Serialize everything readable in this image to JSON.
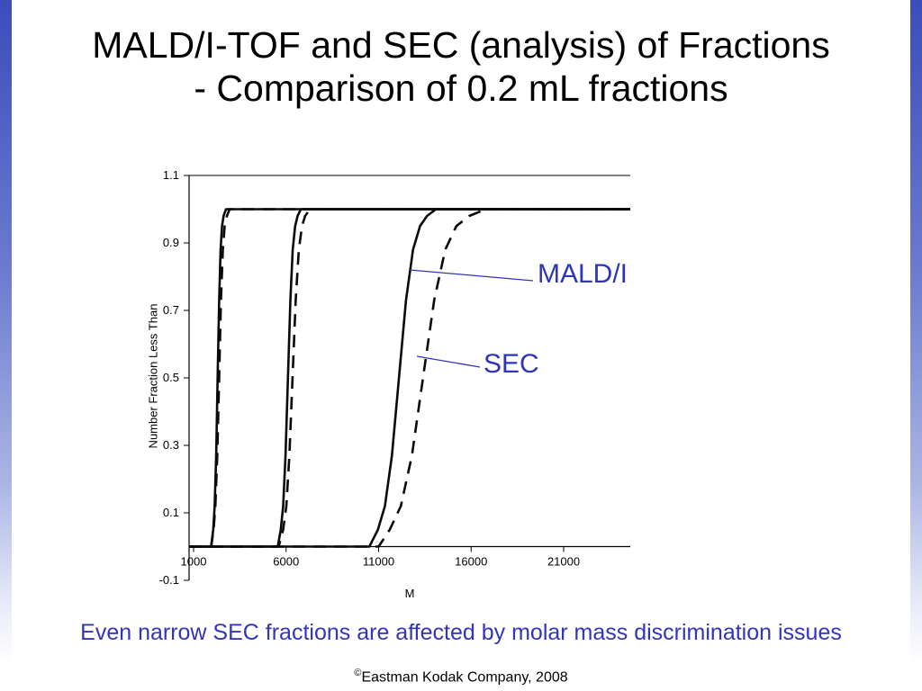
{
  "slide": {
    "title_line1": "MALD/I-TOF and SEC (analysis) of Fractions",
    "title_line2": "- Comparison of 0.2 mL fractions",
    "caption": "Even narrow SEC fractions are affected by molar mass discrimination issues",
    "copyright_symbol": "©",
    "copyright_text": "Eastman Kodak Company, 2008",
    "colors": {
      "title": "#000000",
      "caption": "#3333bb",
      "annotation": "#2e35bb",
      "curve": "#0a0a0a",
      "edge_gradient_top": "#3a4dbb"
    }
  },
  "chart_data": {
    "type": "line",
    "title": "",
    "xlabel": "M",
    "ylabel": "Number Fraction Less Than",
    "xlim": [
      757,
      24600
    ],
    "ylim": [
      -0.1,
      1.1
    ],
    "x_ticks": [
      1000,
      6000,
      11000,
      16000,
      21000
    ],
    "y_ticks": [
      1.1,
      0.9,
      0.7,
      0.5,
      0.3,
      0.1,
      -0.1
    ],
    "grid": false,
    "legend": "inline-annotations",
    "series": [
      {
        "name": "MALDI-TOF fraction 1",
        "dash": false,
        "points": [
          [
            757,
            0
          ],
          [
            1950,
            0
          ],
          [
            2060,
            0.05
          ],
          [
            2140,
            0.12
          ],
          [
            2220,
            0.27
          ],
          [
            2300,
            0.5
          ],
          [
            2380,
            0.73
          ],
          [
            2460,
            0.88
          ],
          [
            2540,
            0.95
          ],
          [
            2620,
            0.98
          ],
          [
            2750,
            1
          ],
          [
            24600,
            1
          ]
        ]
      },
      {
        "name": "SEC fraction 1",
        "dash": true,
        "points": [
          [
            757,
            0
          ],
          [
            1950,
            0
          ],
          [
            2080,
            0.05
          ],
          [
            2180,
            0.12
          ],
          [
            2280,
            0.27
          ],
          [
            2380,
            0.5
          ],
          [
            2480,
            0.73
          ],
          [
            2580,
            0.88
          ],
          [
            2680,
            0.95
          ],
          [
            2800,
            0.98
          ],
          [
            2950,
            1
          ],
          [
            24600,
            1
          ]
        ]
      },
      {
        "name": "MALDI-TOF fraction 2",
        "dash": false,
        "points": [
          [
            757,
            0
          ],
          [
            5550,
            0
          ],
          [
            5710,
            0.05
          ],
          [
            5840,
            0.12
          ],
          [
            5970,
            0.27
          ],
          [
            6100,
            0.5
          ],
          [
            6230,
            0.73
          ],
          [
            6360,
            0.88
          ],
          [
            6490,
            0.95
          ],
          [
            6620,
            0.98
          ],
          [
            6800,
            1
          ],
          [
            24600,
            1
          ]
        ]
      },
      {
        "name": "SEC fraction 2",
        "dash": true,
        "points": [
          [
            757,
            0
          ],
          [
            5600,
            0
          ],
          [
            5840,
            0.05
          ],
          [
            6010,
            0.12
          ],
          [
            6180,
            0.27
          ],
          [
            6350,
            0.5
          ],
          [
            6520,
            0.73
          ],
          [
            6690,
            0.88
          ],
          [
            6860,
            0.95
          ],
          [
            7030,
            0.98
          ],
          [
            7300,
            1
          ],
          [
            24600,
            1
          ]
        ]
      },
      {
        "name": "MALDI-TOF fraction 3",
        "dash": false,
        "points": [
          [
            757,
            0
          ],
          [
            10500,
            0
          ],
          [
            10960,
            0.05
          ],
          [
            11340,
            0.12
          ],
          [
            11720,
            0.27
          ],
          [
            12100,
            0.5
          ],
          [
            12480,
            0.73
          ],
          [
            12860,
            0.88
          ],
          [
            13240,
            0.95
          ],
          [
            13620,
            0.98
          ],
          [
            14100,
            1
          ],
          [
            24600,
            1
          ]
        ]
      },
      {
        "name": "SEC fraction 3",
        "dash": true,
        "points": [
          [
            757,
            0
          ],
          [
            11000,
            0
          ],
          [
            11600,
            0.05
          ],
          [
            12200,
            0.12
          ],
          [
            12800,
            0.27
          ],
          [
            13400,
            0.5
          ],
          [
            14000,
            0.73
          ],
          [
            14600,
            0.88
          ],
          [
            15200,
            0.95
          ],
          [
            15900,
            0.98
          ],
          [
            16800,
            1
          ],
          [
            24600,
            1
          ]
        ]
      }
    ],
    "annotations": [
      {
        "label": "MALD/I",
        "points_to": "solid MALDI curve",
        "line": [
          [
            12678,
            0.82
          ],
          [
            19345,
            0.788
          ]
        ]
      },
      {
        "label": "SEC",
        "points_to": "dashed SEC curve",
        "line": [
          [
            13067,
            0.564
          ],
          [
            16472,
            0.532
          ]
        ]
      }
    ]
  }
}
